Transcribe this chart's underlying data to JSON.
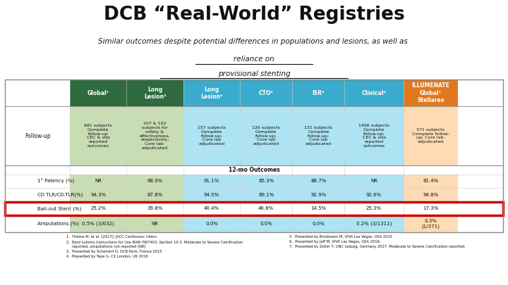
{
  "title": "DCB “Real-World” Registries",
  "subtitle_plain": "Similar outcomes despite potential differences in populations and lesions, as well as ",
  "subtitle_ul1": "reliance on",
  "subtitle_ul2": "provisional stenting",
  "bg_color": "#FFFFFF",
  "col_headers": [
    "Global¹",
    "Long\nLesion²",
    "Long\nLesion³",
    "CTO⁴",
    "ISR⁵",
    "Clinical⁶",
    "ILLUMENATE\nGlobal⁷\nStellarex"
  ],
  "col_bg_colors": [
    "#C8DDB4",
    "#C8DDB4",
    "#ADE3F2",
    "#ADE3F2",
    "#ADE3F2",
    "#ADE3F2",
    "#FDDCB5"
  ],
  "col_header_bg": [
    "#2E6B3E",
    "#2E6B3E",
    "#3AABCC",
    "#3AABCC",
    "#3AABCC",
    "#3AABCC",
    "#E07820"
  ],
  "followup_label": "Follow-up",
  "followup_data": [
    "681 subjects\nComplete\nfollow-up\nCEC & site\nreported\noutcomes",
    "107 & 102\nsubjects for\nsafety &\neffectiveness,\nrespectively;\nCore lab-\nadjudicated",
    "157 subjects\nComplete\nfollow-up;\nCore lab\nadjudicated",
    "126 subjects\nComplete\nfollow-up;\nCore lab\nadjudicated",
    "131 subjects\nComplete\nfollow-up;\nCore lab\nadjudicated",
    "1406 subjects\nComplete\nfollow-up;\nCEC & site\nreported\noutcomes",
    "371 subjects\nComplete follow-\nup; Core lab-\nadjudicated"
  ],
  "outcomes_label": "12-mo Outcomes",
  "outcomes_rows": [
    {
      "label": "1° Patency (%)",
      "values": [
        "NR",
        "68.9%",
        "91.1%",
        "85.3%",
        "88.7%",
        "NR",
        "81.4%"
      ],
      "highlight": false
    },
    {
      "label": "CD TLR/CD-TLR(%)",
      "values": [
        "94.3%",
        "87.8%",
        "94.0%",
        "89.1%",
        "92.9%",
        "92.6%",
        "94.8%"
      ],
      "highlight": false
    },
    {
      "label": "Bail-out Stent (%)",
      "values": [
        "25.2%",
        "39.8%",
        "40.4%",
        "46.8%",
        "14.5%",
        "25.3%",
        "17.3%"
      ],
      "highlight": true
    },
    {
      "label": "Amputations (%)",
      "values": [
        "0.5% (3/632)",
        "NR",
        "0.0%",
        "0.0%",
        "0.0%",
        "0.2% (3/1311)",
        "0.3%\n(1/371)"
      ],
      "highlight": false
    }
  ],
  "footer_logo_color": "#7B5EA7",
  "footer_text": "1.  Thème M, et al. [2017]. JACC Cardiovasc Interv.\n2.  Bard Lutonix Instructions for Use BAW ISR7403, Section 10.3. Moderate to Severe Calcification\n     reported, amputations not reported [NR]\n3.  Presented by Scheinert D, DCB Paris, France 2015\n4.  Presented by Tepe G, CX London, UK 2016",
  "footer_text2": "5.  Presented by Brodmann M, VIVA Las Vegas, USA 2015\n6.  Presented by Jaff M, VIVA Las Vegas, USA 2016,\n7.  Presented by Zeller T, UNC Leipzig, Germany 2017. Moderate to Severe Calcification reported.",
  "highlight_border_color": "#CC0000",
  "footer_bg": "#D0BFDF"
}
